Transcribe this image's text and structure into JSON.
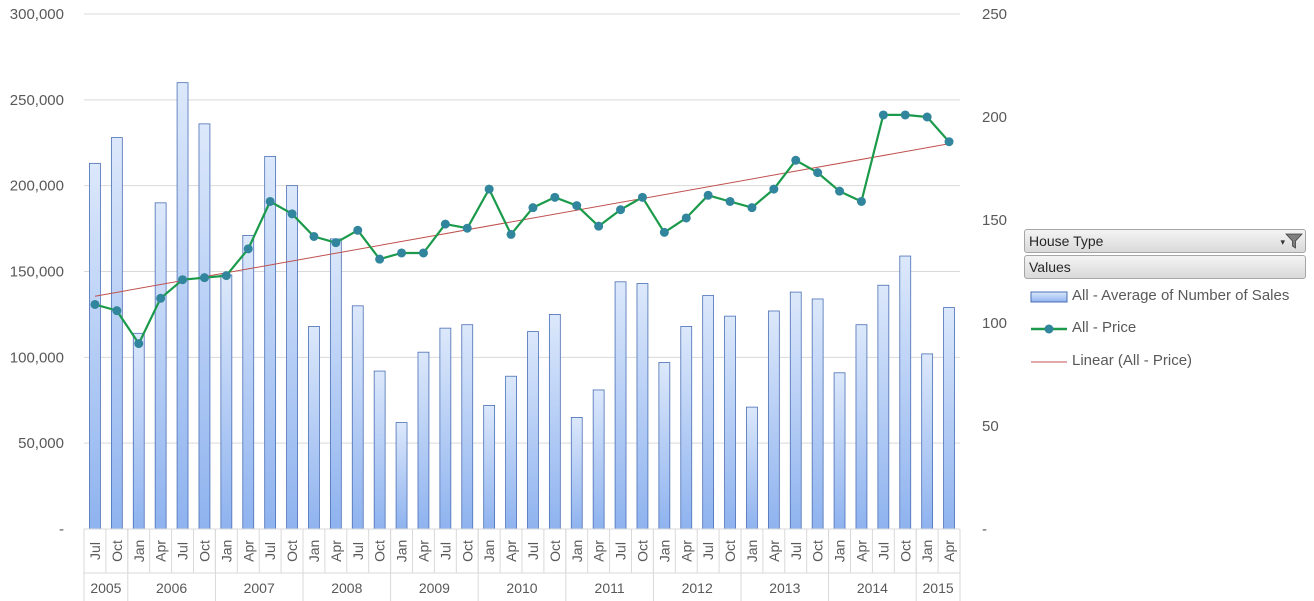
{
  "chart_data": {
    "type": "combo bar-line",
    "primary_axis": {
      "ylim": [
        0,
        300000
      ],
      "tick_labels": [
        "-",
        "50,000",
        "100,000",
        "150,000",
        "200,000",
        "250,000",
        "300,000"
      ]
    },
    "secondary_axis": {
      "ylim": [
        0,
        250
      ],
      "tick_labels": [
        "-",
        "50",
        "100",
        "150",
        "200",
        "250"
      ]
    },
    "categories": [
      "Jul",
      "Oct",
      "Jan",
      "Apr",
      "Jul",
      "Oct",
      "Jan",
      "Apr",
      "Jul",
      "Oct",
      "Jan",
      "Apr",
      "Jul",
      "Oct",
      "Jan",
      "Apr",
      "Jul",
      "Oct",
      "Jan",
      "Apr",
      "Jul",
      "Oct",
      "Jan",
      "Apr",
      "Jul",
      "Oct",
      "Jan",
      "Apr",
      "Jul",
      "Oct",
      "Jan",
      "Apr",
      "Jul",
      "Oct",
      "Jan",
      "Apr",
      "Jul",
      "Oct",
      "Jan",
      "Apr"
    ],
    "years": [
      {
        "label": "2005",
        "count": 2
      },
      {
        "label": "2006",
        "count": 4
      },
      {
        "label": "2007",
        "count": 4
      },
      {
        "label": "2008",
        "count": 4
      },
      {
        "label": "2009",
        "count": 4
      },
      {
        "label": "2010",
        "count": 4
      },
      {
        "label": "2011",
        "count": 4
      },
      {
        "label": "2012",
        "count": 4
      },
      {
        "label": "2013",
        "count": 4
      },
      {
        "label": "2014",
        "count": 4
      },
      {
        "label": "2015",
        "count": 2
      }
    ],
    "series": [
      {
        "name": "All - Average of Number of Sales",
        "type": "bar",
        "axis": "primary",
        "values": [
          213000,
          228000,
          114000,
          190000,
          260000,
          236000,
          148000,
          171000,
          217000,
          200000,
          118000,
          169000,
          130000,
          92000,
          62000,
          103000,
          117000,
          119000,
          72000,
          89000,
          115000,
          125000,
          65000,
          81000,
          144000,
          143000,
          97000,
          118000,
          136000,
          124000,
          71000,
          127000,
          138000,
          134000,
          91000,
          119000,
          142000,
          159000,
          102000,
          129000
        ]
      },
      {
        "name": "All - Price",
        "type": "line",
        "axis": "secondary",
        "values": [
          109,
          106,
          90,
          112,
          121,
          122,
          123,
          136,
          159,
          153,
          142,
          139,
          145,
          131,
          134,
          134,
          148,
          146,
          165,
          143,
          156,
          161,
          157,
          147,
          155,
          161,
          144,
          151,
          162,
          159,
          156,
          165,
          179,
          173,
          164,
          159,
          201,
          201,
          200,
          188
        ]
      },
      {
        "name": "Linear (All - Price)",
        "type": "trendline",
        "axis": "secondary",
        "from": 113,
        "to": 187
      }
    ],
    "colors": {
      "bar_fill_top": "#dce8fb",
      "bar_fill_bottom": "#8fb3ef",
      "bar_stroke": "#4a6fb5",
      "line": "#1a9a4a",
      "marker": "#31859c",
      "trend": "#c0504d",
      "grid": "#d9d9d9"
    }
  },
  "pivot": {
    "field_button": "House Type",
    "values_button": "Values",
    "filter_icon": "filter-icon"
  },
  "legend": [
    {
      "label": "All - Average of Number of Sales",
      "symbol": "bar"
    },
    {
      "label": "All - Price",
      "symbol": "line-marker"
    },
    {
      "label": "Linear (All - Price)",
      "symbol": "line"
    }
  ]
}
